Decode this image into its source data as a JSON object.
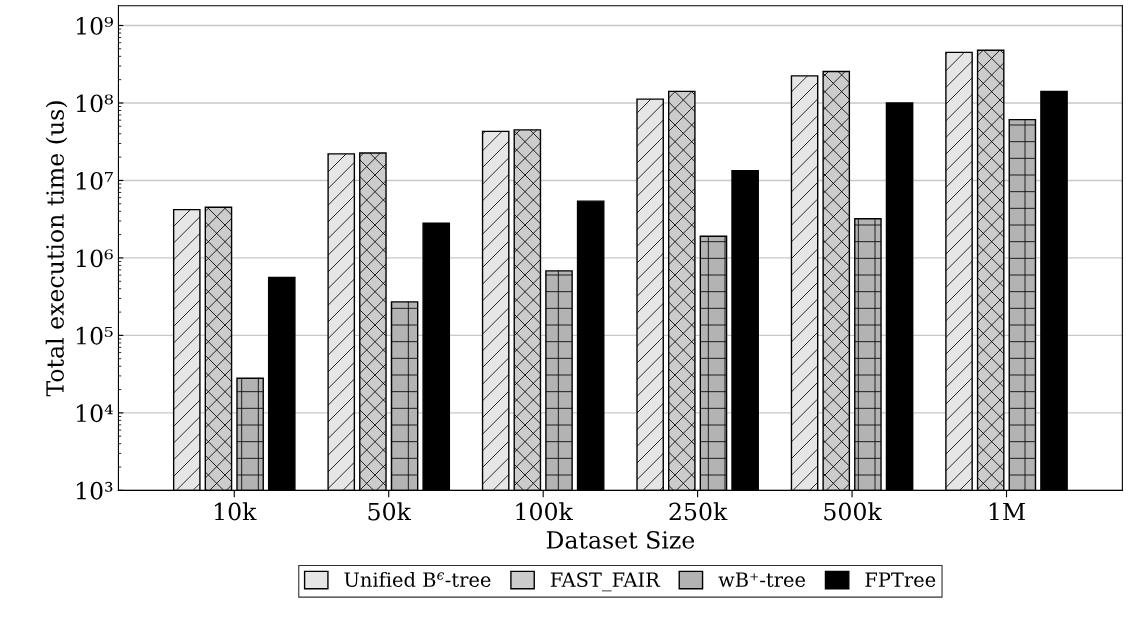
{
  "chart_data": {
    "type": "bar",
    "xlabel": "Dataset Size",
    "ylabel": "Total execution time (us)",
    "categories": [
      "10k",
      "50k",
      "100k",
      "250k",
      "500k",
      "1M"
    ],
    "series": [
      {
        "name": "Unified B$^{ϵ}$-tree",
        "color": "#e6e6e6",
        "values": [
          4200000,
          22000000,
          43000000,
          112000000,
          224000000,
          450000000
        ]
      },
      {
        "name": "FAST_FAIR",
        "color": "#cccccc",
        "values": [
          4500000,
          22600000,
          45000000,
          141000000,
          255000000,
          480000000
        ]
      },
      {
        "name": "wB⁺-tree",
        "color": "#b3b3b3",
        "values": [
          27000,
          270000,
          680000,
          1900000,
          3200000,
          61000000
        ]
      },
      {
        "name": "FPTree",
        "color": "#000000",
        "values": [
          560000,
          2800000,
          5400000,
          13400000,
          100000000,
          141000000
        ]
      }
    ],
    "log": true,
    "ylim": [
      1000,
      1800000000
    ],
    "yticks": [
      {
        "value": 1000,
        "label": "10³"
      },
      {
        "value": 10000,
        "label": "10⁴"
      },
      {
        "value": 100000,
        "label": "10⁵"
      },
      {
        "value": 1000000,
        "label": "10⁶"
      },
      {
        "value": 10000000,
        "label": "10⁷"
      },
      {
        "value": 100000000,
        "label": "10⁸"
      },
      {
        "value": 1000000000,
        "label": "10⁹"
      }
    ],
    "grid": "y",
    "legend": "bottom"
  }
}
